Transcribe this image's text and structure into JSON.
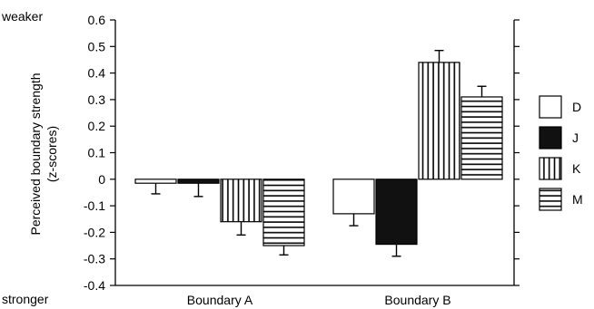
{
  "labels": {
    "weaker": "weaker",
    "stronger": "stronger"
  },
  "chart_data": {
    "type": "bar",
    "title": "",
    "ylabel_line1": "Perceived boundary strength",
    "ylabel_line2": "(z-scores)",
    "xlabel": "",
    "ylim": [
      -0.4,
      0.6
    ],
    "yticks": [
      0.6,
      0.5,
      0.4,
      0.3,
      0.2,
      0.1,
      0,
      -0.1,
      -0.2,
      -0.3,
      -0.4
    ],
    "ytick_labels": [
      "0.6",
      "0.5",
      "0.4",
      "0.3",
      "0.2",
      "0.1",
      "0",
      "-0.1",
      "-0.2",
      "-0.3",
      "-0.4"
    ],
    "grid": false,
    "legend_position": "right",
    "categories": [
      "Boundary A",
      "Boundary B"
    ],
    "series": [
      {
        "name": "D",
        "pattern": "white",
        "values": [
          -0.015,
          -0.13
        ],
        "errors": [
          0.04,
          0.045
        ]
      },
      {
        "name": "J",
        "pattern": "black",
        "values": [
          -0.015,
          -0.245
        ],
        "errors": [
          0.05,
          0.045
        ]
      },
      {
        "name": "K",
        "pattern": "vertical",
        "values": [
          -0.16,
          0.44
        ],
        "errors": [
          0.05,
          0.045
        ]
      },
      {
        "name": "M",
        "pattern": "horizontal",
        "values": [
          -0.25,
          0.31
        ],
        "errors": [
          0.035,
          0.04
        ]
      }
    ],
    "colors": {
      "stroke": "#000000",
      "fill_dark": "#111111",
      "fill_light": "#ffffff"
    }
  }
}
